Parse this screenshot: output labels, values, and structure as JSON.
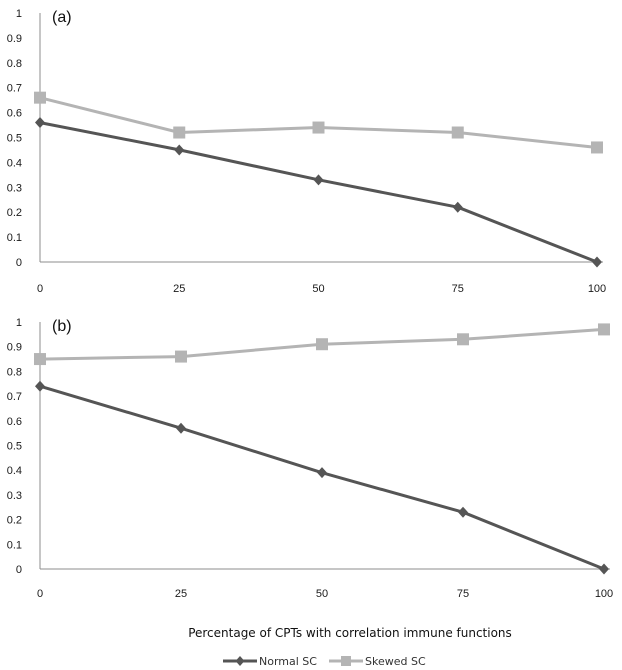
{
  "chart_data": [
    {
      "type": "line",
      "panel_label": "(a)",
      "x": [
        0,
        25,
        50,
        75,
        100
      ],
      "xlim": [
        0,
        100
      ],
      "ylim": [
        0,
        1
      ],
      "yticks": [
        0,
        0.1,
        0.2,
        0.3,
        0.4,
        0.5,
        0.6,
        0.7,
        0.8,
        0.9,
        1
      ],
      "grid": false,
      "series": [
        {
          "name": "Normal SC",
          "color": "#555555",
          "marker": "diamond",
          "values": [
            0.56,
            0.45,
            0.33,
            0.22,
            0.0
          ]
        },
        {
          "name": "Skewed SC",
          "color": "#b4b4b4",
          "marker": "square",
          "values": [
            0.66,
            0.52,
            0.54,
            0.52,
            0.46
          ]
        }
      ]
    },
    {
      "type": "line",
      "panel_label": "(b)",
      "x": [
        0,
        25,
        50,
        75,
        100
      ],
      "xlim": [
        0,
        100
      ],
      "ylim": [
        0,
        1
      ],
      "yticks": [
        0,
        0.1,
        0.2,
        0.3,
        0.4,
        0.5,
        0.6,
        0.7,
        0.8,
        0.9,
        1
      ],
      "grid": false,
      "series": [
        {
          "name": "Normal SC",
          "color": "#555555",
          "marker": "diamond",
          "values": [
            0.74,
            0.57,
            0.39,
            0.23,
            0.0
          ]
        },
        {
          "name": "Skewed SC",
          "color": "#b4b4b4",
          "marker": "square",
          "values": [
            0.85,
            0.86,
            0.91,
            0.93,
            0.97
          ]
        }
      ]
    }
  ],
  "xlabel": "Percentage of CPTs with correlation immune functions",
  "legend": {
    "placement": "bottom",
    "entries": [
      {
        "name": "Normal SC",
        "color": "#555555",
        "marker": "diamond"
      },
      {
        "name": "Skewed SC",
        "color": "#b4b4b4",
        "marker": "square"
      }
    ]
  }
}
